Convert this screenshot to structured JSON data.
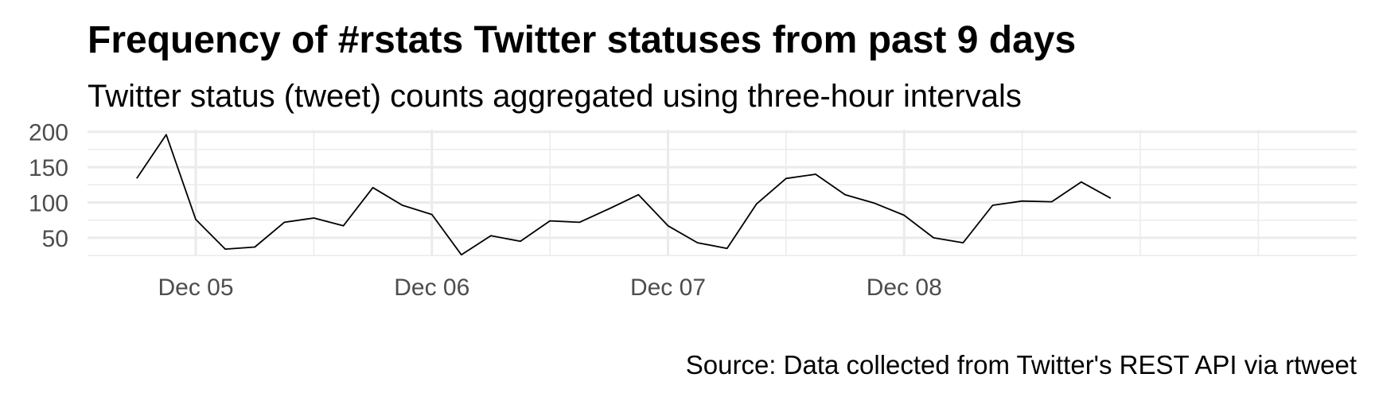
{
  "chart_data": {
    "type": "line",
    "title": "Frequency of #rstats Twitter statuses from past 9 days",
    "subtitle": "Twitter status (tweet) counts aggregated using three-hour intervals",
    "caption": "Source: Data collected from Twitter's REST API via rtweet",
    "xlabel": "",
    "ylabel": "",
    "x_ticks": [
      {
        "label": "Dec 05",
        "x": "2017-12-05T00:00"
      },
      {
        "label": "Dec 06",
        "x": "2017-12-06T00:00"
      },
      {
        "label": "Dec 07",
        "x": "2017-12-07T00:00"
      },
      {
        "label": "Dec 08",
        "x": "2017-12-08T00:00"
      }
    ],
    "y_ticks": [
      50,
      100,
      150,
      200
    ],
    "xlim": [
      "2017-12-04T13:00",
      "2017-12-09T22:00"
    ],
    "ylim": [
      24,
      203
    ],
    "grid": true,
    "series": [
      {
        "color": "#000000",
        "points": [
          {
            "x": "2017-12-04T18:00",
            "y": 134
          },
          {
            "x": "2017-12-04T21:00",
            "y": 196
          },
          {
            "x": "2017-12-05T00:00",
            "y": 76
          },
          {
            "x": "2017-12-05T03:00",
            "y": 34
          },
          {
            "x": "2017-12-05T06:00",
            "y": 37
          },
          {
            "x": "2017-12-05T09:00",
            "y": 72
          },
          {
            "x": "2017-12-05T12:00",
            "y": 78
          },
          {
            "x": "2017-12-05T15:00",
            "y": 67
          },
          {
            "x": "2017-12-05T18:00",
            "y": 121
          },
          {
            "x": "2017-12-05T21:00",
            "y": 96
          },
          {
            "x": "2017-12-06T00:00",
            "y": 83
          },
          {
            "x": "2017-12-06T03:00",
            "y": 26
          },
          {
            "x": "2017-12-06T06:00",
            "y": 53
          },
          {
            "x": "2017-12-06T09:00",
            "y": 45
          },
          {
            "x": "2017-12-06T12:00",
            "y": 74
          },
          {
            "x": "2017-12-06T15:00",
            "y": 72
          },
          {
            "x": "2017-12-06T18:00",
            "y": 91
          },
          {
            "x": "2017-12-06T21:00",
            "y": 111
          },
          {
            "x": "2017-12-07T00:00",
            "y": 67
          },
          {
            "x": "2017-12-07T03:00",
            "y": 43
          },
          {
            "x": "2017-12-07T06:00",
            "y": 35
          },
          {
            "x": "2017-12-07T09:00",
            "y": 98
          },
          {
            "x": "2017-12-07T12:00",
            "y": 134
          },
          {
            "x": "2017-12-07T15:00",
            "y": 140
          },
          {
            "x": "2017-12-07T18:00",
            "y": 111
          },
          {
            "x": "2017-12-07T21:00",
            "y": 99
          },
          {
            "x": "2017-12-08T00:00",
            "y": 82
          },
          {
            "x": "2017-12-08T03:00",
            "y": 50
          },
          {
            "x": "2017-12-08T06:00",
            "y": 43
          },
          {
            "x": "2017-12-08T09:00",
            "y": 96
          },
          {
            "x": "2017-12-08T12:00",
            "y": 102
          },
          {
            "x": "2017-12-08T15:00",
            "y": 101
          },
          {
            "x": "2017-12-08T18:00",
            "y": 129
          },
          {
            "x": "2017-12-08T21:00",
            "y": 106
          }
        ]
      }
    ]
  }
}
